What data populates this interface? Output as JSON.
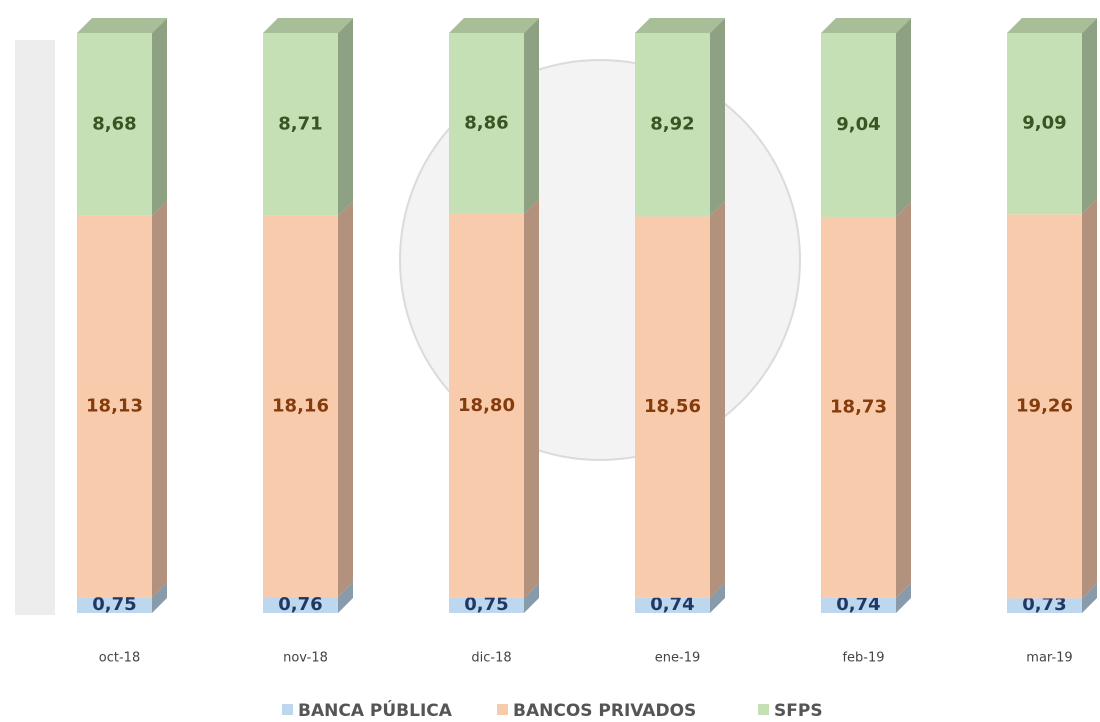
{
  "chart_data": {
    "type": "bar",
    "stacked": true,
    "normalized": true,
    "categories": [
      "oct-18",
      "nov-18",
      "dic-18",
      "ene-19",
      "feb-19",
      "mar-19"
    ],
    "series": [
      {
        "name": "BANCA PÚBLICA",
        "color": "#bdd7ee",
        "label_color": "#1f3864",
        "values": [
          0.75,
          0.76,
          0.75,
          0.74,
          0.74,
          0.73
        ],
        "value_labels": [
          "0,75",
          "0,76",
          "0,75",
          "0,74",
          "0,74",
          "0,73"
        ]
      },
      {
        "name": "BANCOS PRIVADOS",
        "color": "#f8cbad",
        "label_color": "#843c0c",
        "values": [
          18.13,
          18.16,
          18.8,
          18.56,
          18.73,
          19.26
        ],
        "value_labels": [
          "18,13",
          "18,16",
          "18,80",
          "18,56",
          "18,73",
          "19,26"
        ]
      },
      {
        "name": "SFPS",
        "color": "#c5e0b4",
        "label_color": "#375623",
        "values": [
          8.68,
          8.71,
          8.86,
          8.92,
          9.04,
          9.09
        ],
        "value_labels": [
          "8,68",
          "8,71",
          "8,86",
          "8,92",
          "9,04",
          "9,09"
        ]
      }
    ],
    "legend": "bottom"
  }
}
